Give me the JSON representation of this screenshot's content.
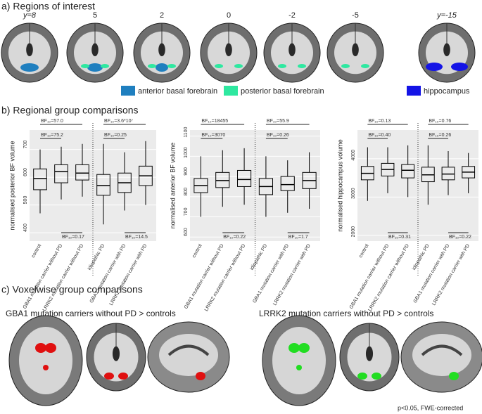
{
  "panel_a": {
    "label": "a) Regions of interest",
    "slices": [
      "y=8",
      "5",
      "2",
      "0",
      "-2",
      "-5",
      "y=-15"
    ],
    "legend": [
      {
        "label": "anterior basal forebrain",
        "color": "#1f7fbf"
      },
      {
        "label": "posterior basal forebrain",
        "color": "#2ee8a0"
      },
      {
        "label": "hippocampus",
        "color": "#1414e6"
      }
    ]
  },
  "panel_b": {
    "label": "b) Regional group comparisons"
  },
  "chart_data": [
    {
      "type": "box",
      "ylabel": "normalised posterior BF volume",
      "categories": [
        "control",
        "GBA1 mutation carrier without PD",
        "LRRK2 mutation carrier without PD",
        "idiopathic PD",
        "GBA1 mutation carrier with PD",
        "LRRK2 mutation carrier with PD"
      ],
      "boxes": [
        {
          "min": 470,
          "q1": 555,
          "median": 595,
          "q3": 630,
          "max": 700
        },
        {
          "min": 520,
          "q1": 580,
          "median": 620,
          "q3": 645,
          "max": 710
        },
        {
          "min": 530,
          "q1": 590,
          "median": 615,
          "q3": 645,
          "max": 720
        },
        {
          "min": 430,
          "q1": 535,
          "median": 570,
          "q3": 610,
          "max": 720
        },
        {
          "min": 480,
          "q1": 545,
          "median": 580,
          "q3": 615,
          "max": 690
        },
        {
          "min": 500,
          "q1": 570,
          "median": 605,
          "q3": 640,
          "max": 730
        }
      ],
      "ylim": [
        370,
        770
      ],
      "yticks": [
        400,
        500,
        600,
        700
      ],
      "color": "#000000",
      "annotations": [
        {
          "label": "BF₁₀=57.0",
          "from": 0,
          "to": 2,
          "side": "above"
        },
        {
          "label": "BF₁₀=75.2",
          "from": 0,
          "to": 1,
          "side": "above"
        },
        {
          "label": "BF₁₀=0.17",
          "from": 1,
          "to": 2,
          "side": "below"
        },
        {
          "label": "BF₁₀=3.6*10⁷",
          "from": 3,
          "to": 5,
          "side": "above"
        },
        {
          "label": "BF₁₀=0.25",
          "from": 3,
          "to": 4,
          "side": "above"
        },
        {
          "label": "BF₁₀=14.5",
          "from": 4,
          "to": 5,
          "side": "below"
        }
      ]
    },
    {
      "type": "box",
      "ylabel": "normalised anterior BF volume",
      "categories": [
        "control",
        "GBA1 mutation carrier without PD",
        "LRRK2 mutation carrier without PD",
        "idiopathic PD",
        "GBA1 mutation carrier with PD",
        "LRRK2 mutation carrier with PD"
      ],
      "boxes": [
        {
          "min": 700,
          "q1": 820,
          "median": 855,
          "q3": 890,
          "max": 1000
        },
        {
          "min": 750,
          "q1": 845,
          "median": 880,
          "q3": 920,
          "max": 1030
        },
        {
          "min": 760,
          "q1": 850,
          "median": 885,
          "q3": 930,
          "max": 1040
        },
        {
          "min": 700,
          "q1": 810,
          "median": 850,
          "q3": 890,
          "max": 1000
        },
        {
          "min": 720,
          "q1": 830,
          "median": 860,
          "q3": 900,
          "max": 980
        },
        {
          "min": 740,
          "q1": 840,
          "median": 880,
          "q3": 920,
          "max": 1020
        }
      ],
      "ylim": [
        580,
        1130
      ],
      "yticks": [
        600,
        700,
        800,
        900,
        1000,
        1100
      ],
      "color": "#000000",
      "annotations": [
        {
          "label": "BF₁₀=18455",
          "from": 0,
          "to": 2,
          "side": "above"
        },
        {
          "label": "BF₁₀=3070",
          "from": 0,
          "to": 1,
          "side": "above"
        },
        {
          "label": "BF₁₀=0.22",
          "from": 1,
          "to": 2,
          "side": "below"
        },
        {
          "label": "BF₁₀=55.9",
          "from": 3,
          "to": 5,
          "side": "above"
        },
        {
          "label": "BF₁₀=0.26",
          "from": 3,
          "to": 4,
          "side": "above"
        },
        {
          "label": "BF₁₀=1.7",
          "from": 4,
          "to": 5,
          "side": "below"
        }
      ]
    },
    {
      "type": "box",
      "ylabel": "normalised hippocampus volume",
      "categories": [
        "control",
        "GBA1 mutation carrier without PD",
        "LRRK2 mutation carrier without PD",
        "idiopathic PD",
        "GBA1 mutation carrier with PD",
        "LRRK2 mutation carrier with PD"
      ],
      "boxes": [
        {
          "min": 2900,
          "q1": 3450,
          "median": 3620,
          "q3": 3800,
          "max": 4300
        },
        {
          "min": 3100,
          "q1": 3550,
          "median": 3720,
          "q3": 3880,
          "max": 4300
        },
        {
          "min": 3000,
          "q1": 3500,
          "median": 3700,
          "q3": 3850,
          "max": 4350
        },
        {
          "min": 2800,
          "q1": 3400,
          "median": 3580,
          "q3": 3780,
          "max": 4350
        },
        {
          "min": 3050,
          "q1": 3450,
          "median": 3600,
          "q3": 3780,
          "max": 4200
        },
        {
          "min": 3100,
          "q1": 3500,
          "median": 3650,
          "q3": 3800,
          "max": 4150
        }
      ],
      "ylim": [
        1850,
        4750
      ],
      "yticks": [
        2000,
        3000,
        4000
      ],
      "color": "#000000",
      "annotations": [
        {
          "label": "BF₁₀=0.13",
          "from": 0,
          "to": 2,
          "side": "above"
        },
        {
          "label": "BF₁₀=0.40",
          "from": 0,
          "to": 1,
          "side": "above"
        },
        {
          "label": "BF₁₀=0.31",
          "from": 1,
          "to": 2,
          "side": "below"
        },
        {
          "label": "BF₁₀=0.76",
          "from": 3,
          "to": 5,
          "side": "above"
        },
        {
          "label": "BF₁₀=0.26",
          "from": 3,
          "to": 4,
          "side": "above"
        },
        {
          "label": "BF₁₀=0.22",
          "from": 4,
          "to": 5,
          "side": "below"
        }
      ]
    }
  ],
  "panel_c": {
    "label": "c) Voxelwise group comparisons",
    "left_title": "GBA1 mutation carriers without PD > controls",
    "left_color": "#e01010",
    "right_title": "LRRK2 mutation carriers without PD > controls",
    "right_color": "#22dd22",
    "footnote": "p<0.05, FWE-corrected"
  }
}
